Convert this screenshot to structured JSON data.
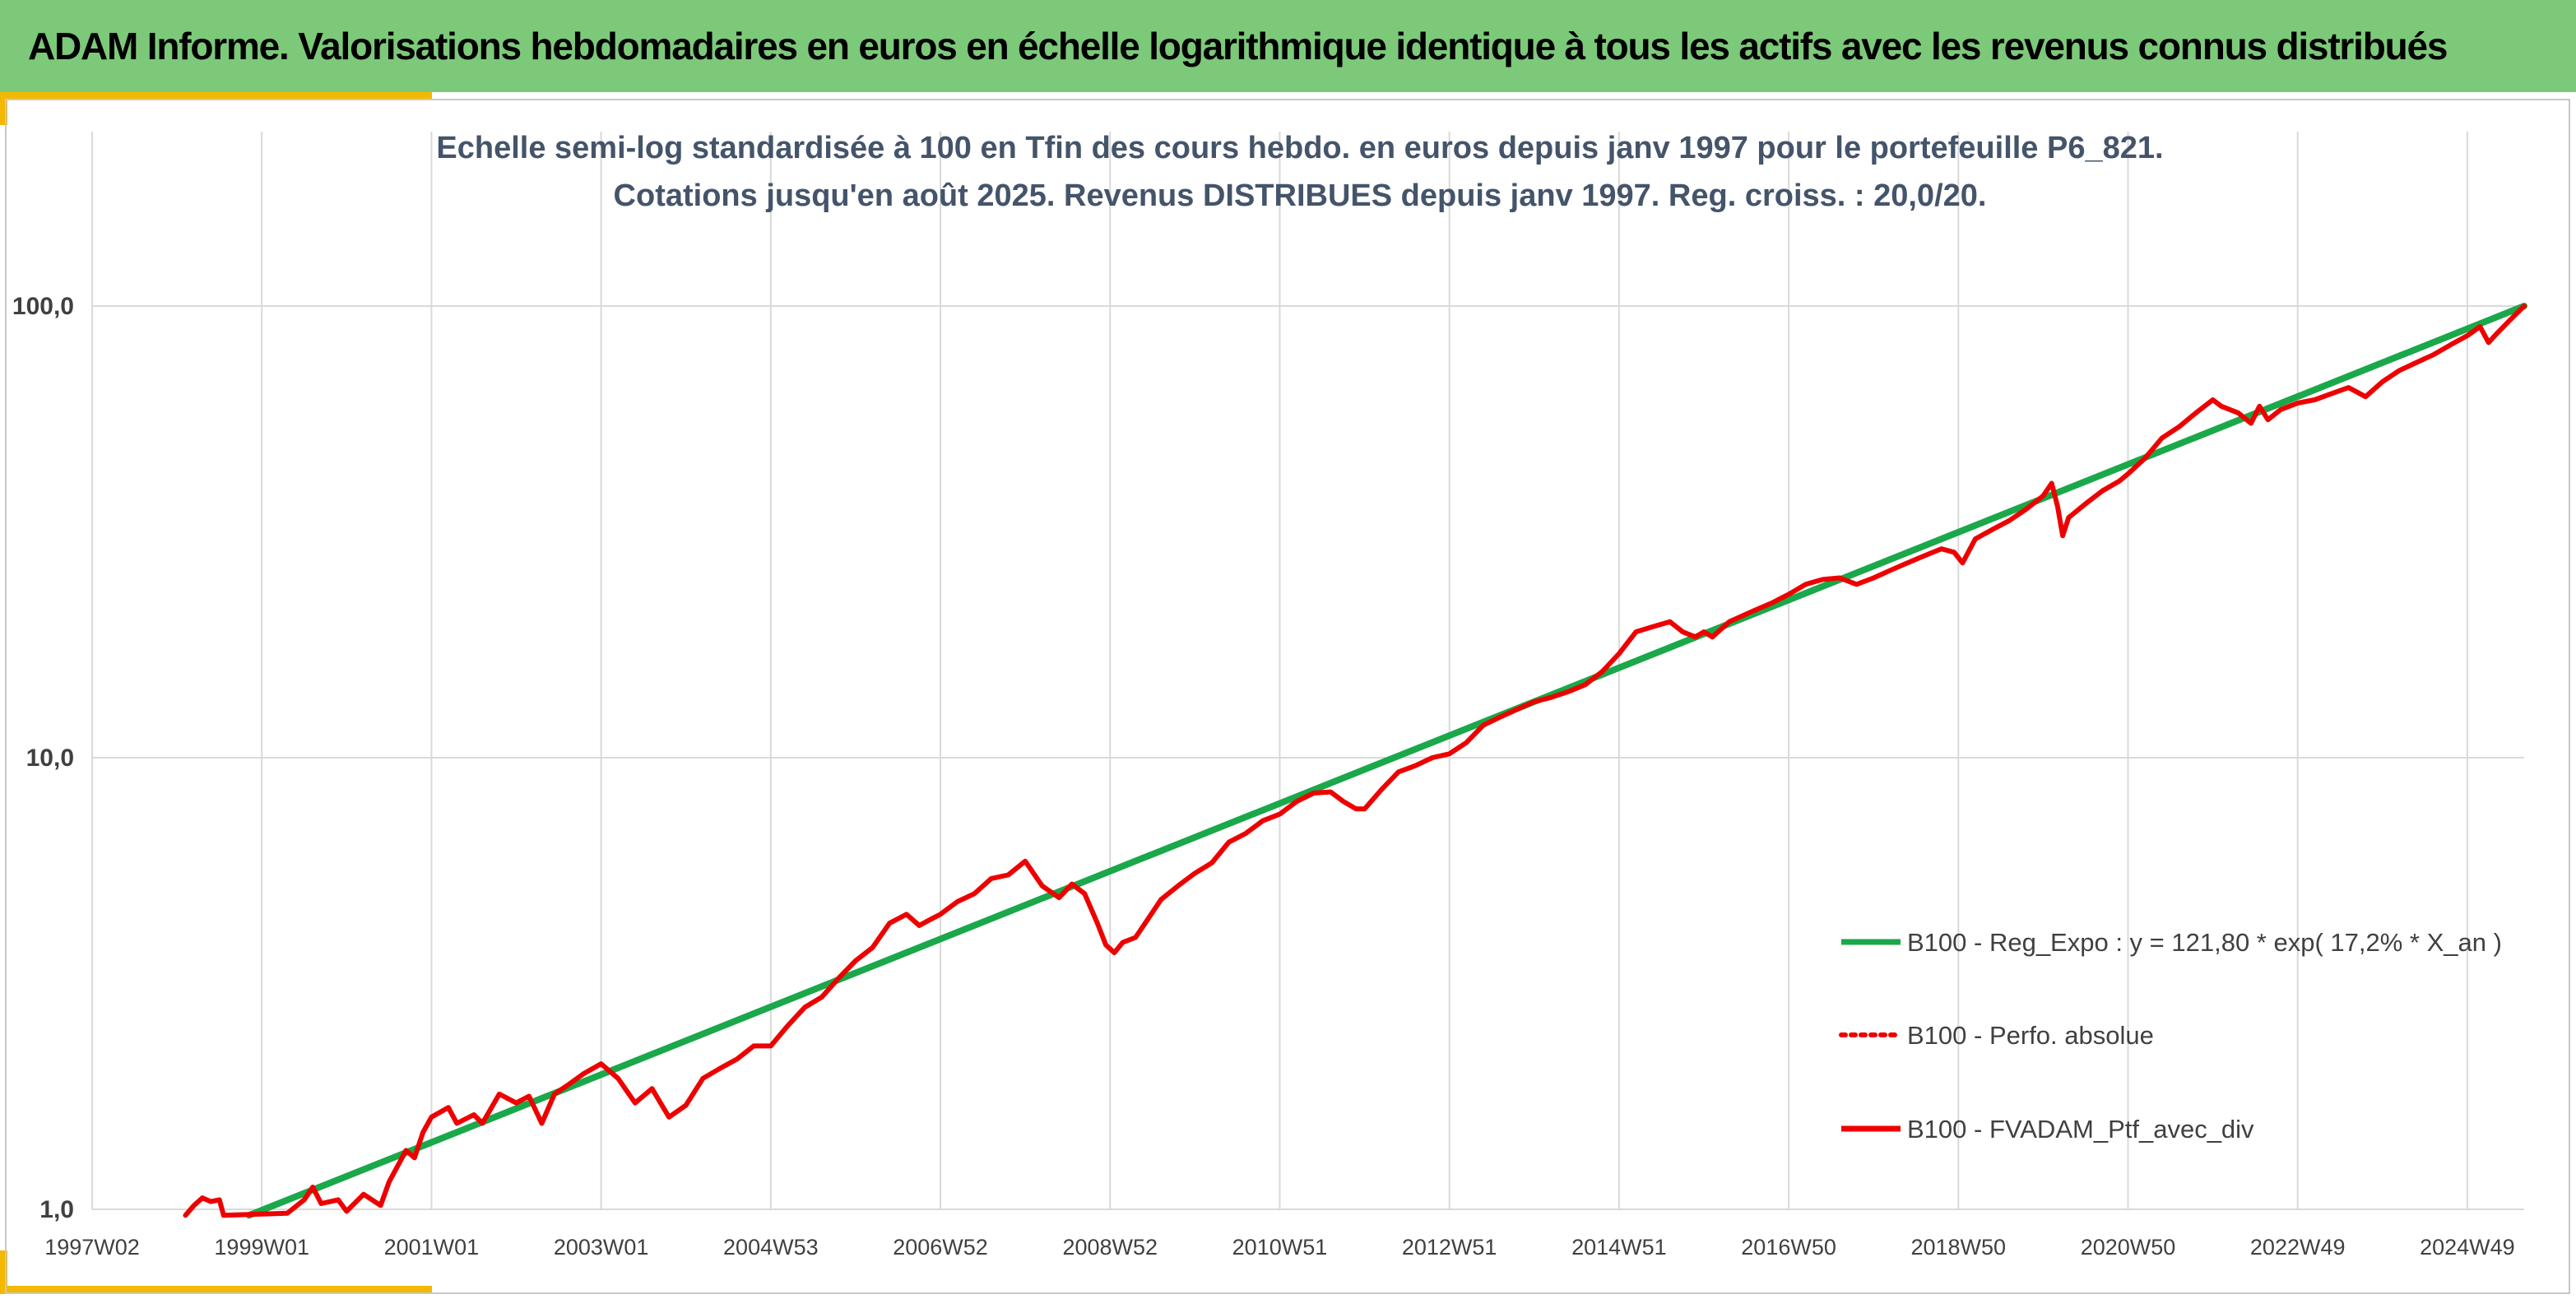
{
  "header": {
    "title": "ADAM Informe. Valorisations hebdomadaires en euros en échelle logarithmique identique à tous les actifs avec les revenus connus distribués"
  },
  "colors": {
    "header_bg": "#7dc97a",
    "accent": "#f4b800",
    "regression_line": "#1aa84a",
    "portfolio_line": "#ee0000",
    "subtitle_text": "#44546a",
    "grid": "#d9d9d9"
  },
  "chart_data": {
    "type": "line",
    "title_lines": [
      "Echelle semi-log standardisée à 100 en Tfin des cours hebdo. en euros depuis janv 1997 pour le portefeuille P6_821.",
      "Cotations jusqu'en août 2025. Revenus DISTRIBUES depuis janv 1997. Reg. croiss. : 20,0/20."
    ],
    "y_scale": "log",
    "ylim": [
      1,
      100
    ],
    "y_ticks": [
      {
        "value": 1,
        "label": "1,0"
      },
      {
        "value": 10,
        "label": "10,0"
      },
      {
        "value": 100,
        "label": "100,0"
      }
    ],
    "xlim": [
      1997.0,
      2025.67
    ],
    "x_ticks": [
      {
        "value": 1997.0,
        "label": "1997W02"
      },
      {
        "value": 1999.0,
        "label": "1999W01"
      },
      {
        "value": 2001.0,
        "label": "2001W01"
      },
      {
        "value": 2003.0,
        "label": "2003W01"
      },
      {
        "value": 2005.0,
        "label": "2004W53"
      },
      {
        "value": 2007.0,
        "label": "2006W52"
      },
      {
        "value": 2009.0,
        "label": "2008W52"
      },
      {
        "value": 2011.0,
        "label": "2010W51"
      },
      {
        "value": 2013.0,
        "label": "2012W51"
      },
      {
        "value": 2015.0,
        "label": "2014W51"
      },
      {
        "value": 2017.0,
        "label": "2016W50"
      },
      {
        "value": 2019.0,
        "label": "2018W50"
      },
      {
        "value": 2021.0,
        "label": "2020W50"
      },
      {
        "value": 2023.0,
        "label": "2022W49"
      },
      {
        "value": 2025.0,
        "label": "2024W49"
      }
    ],
    "grid": true,
    "legend_position": "right",
    "series": [
      {
        "name": "B100 - Reg_Expo : y = 121,80 * exp( 17,2% *  X_an )",
        "style": "solid-green",
        "points": [
          [
            1998.85,
            0.97
          ],
          [
            2025.67,
            100.0
          ]
        ]
      },
      {
        "name": "B100 - Perfo. absolue",
        "style": "dotted-red",
        "points": []
      },
      {
        "name": "B100 - FVADAM_Ptf_avec_div",
        "style": "solid-red",
        "points": [
          [
            1998.1,
            0.97
          ],
          [
            1998.2,
            1.02
          ],
          [
            1998.3,
            1.06
          ],
          [
            1998.4,
            1.04
          ],
          [
            1998.5,
            1.05
          ],
          [
            1998.55,
            0.97
          ],
          [
            1999.3,
            0.98
          ],
          [
            1999.5,
            1.05
          ],
          [
            1999.6,
            1.12
          ],
          [
            1999.7,
            1.03
          ],
          [
            1999.9,
            1.05
          ],
          [
            2000.0,
            0.99
          ],
          [
            2000.2,
            1.08
          ],
          [
            2000.4,
            1.02
          ],
          [
            2000.5,
            1.15
          ],
          [
            2000.7,
            1.35
          ],
          [
            2000.8,
            1.3
          ],
          [
            2000.9,
            1.48
          ],
          [
            2001.0,
            1.6
          ],
          [
            2001.2,
            1.68
          ],
          [
            2001.3,
            1.55
          ],
          [
            2001.5,
            1.62
          ],
          [
            2001.6,
            1.55
          ],
          [
            2001.8,
            1.8
          ],
          [
            2002.0,
            1.72
          ],
          [
            2002.15,
            1.78
          ],
          [
            2002.3,
            1.55
          ],
          [
            2002.45,
            1.8
          ],
          [
            2002.6,
            1.88
          ],
          [
            2002.8,
            2.0
          ],
          [
            2003.0,
            2.1
          ],
          [
            2003.2,
            1.95
          ],
          [
            2003.4,
            1.72
          ],
          [
            2003.6,
            1.85
          ],
          [
            2003.8,
            1.6
          ],
          [
            2004.0,
            1.7
          ],
          [
            2004.2,
            1.95
          ],
          [
            2004.4,
            2.05
          ],
          [
            2004.6,
            2.15
          ],
          [
            2004.8,
            2.3
          ],
          [
            2005.0,
            2.3
          ],
          [
            2005.2,
            2.55
          ],
          [
            2005.4,
            2.8
          ],
          [
            2005.6,
            2.95
          ],
          [
            2005.8,
            3.25
          ],
          [
            2006.0,
            3.55
          ],
          [
            2006.2,
            3.8
          ],
          [
            2006.4,
            4.3
          ],
          [
            2006.6,
            4.5
          ],
          [
            2006.75,
            4.25
          ],
          [
            2006.9,
            4.4
          ],
          [
            2007.0,
            4.5
          ],
          [
            2007.2,
            4.8
          ],
          [
            2007.4,
            5.0
          ],
          [
            2007.6,
            5.4
          ],
          [
            2007.8,
            5.5
          ],
          [
            2008.0,
            5.9
          ],
          [
            2008.2,
            5.2
          ],
          [
            2008.4,
            4.9
          ],
          [
            2008.55,
            5.25
          ],
          [
            2008.7,
            5.0
          ],
          [
            2008.85,
            4.3
          ],
          [
            2008.95,
            3.85
          ],
          [
            2009.05,
            3.7
          ],
          [
            2009.15,
            3.9
          ],
          [
            2009.3,
            4.0
          ],
          [
            2009.45,
            4.4
          ],
          [
            2009.6,
            4.85
          ],
          [
            2009.8,
            5.2
          ],
          [
            2010.0,
            5.55
          ],
          [
            2010.2,
            5.85
          ],
          [
            2010.4,
            6.5
          ],
          [
            2010.6,
            6.8
          ],
          [
            2010.8,
            7.25
          ],
          [
            2011.0,
            7.5
          ],
          [
            2011.2,
            8.0
          ],
          [
            2011.4,
            8.35
          ],
          [
            2011.6,
            8.4
          ],
          [
            2011.75,
            8.0
          ],
          [
            2011.9,
            7.7
          ],
          [
            2012.0,
            7.7
          ],
          [
            2012.2,
            8.5
          ],
          [
            2012.4,
            9.3
          ],
          [
            2012.6,
            9.6
          ],
          [
            2012.8,
            10.0
          ],
          [
            2013.0,
            10.2
          ],
          [
            2013.2,
            10.8
          ],
          [
            2013.4,
            11.8
          ],
          [
            2013.6,
            12.3
          ],
          [
            2013.8,
            12.8
          ],
          [
            2014.0,
            13.3
          ],
          [
            2014.2,
            13.6
          ],
          [
            2014.4,
            14.0
          ],
          [
            2014.6,
            14.5
          ],
          [
            2014.8,
            15.5
          ],
          [
            2015.0,
            17.0
          ],
          [
            2015.2,
            19.0
          ],
          [
            2015.4,
            19.5
          ],
          [
            2015.6,
            20.0
          ],
          [
            2015.75,
            19.0
          ],
          [
            2015.9,
            18.5
          ],
          [
            2016.0,
            19.0
          ],
          [
            2016.1,
            18.5
          ],
          [
            2016.3,
            20.0
          ],
          [
            2016.6,
            21.2
          ],
          [
            2016.8,
            22.0
          ],
          [
            2017.0,
            23.0
          ],
          [
            2017.2,
            24.2
          ],
          [
            2017.4,
            24.8
          ],
          [
            2017.6,
            25.0
          ],
          [
            2017.8,
            24.2
          ],
          [
            2018.0,
            25.0
          ],
          [
            2018.2,
            26.0
          ],
          [
            2018.4,
            27.0
          ],
          [
            2018.6,
            28.0
          ],
          [
            2018.8,
            29.0
          ],
          [
            2018.95,
            28.5
          ],
          [
            2019.05,
            27.0
          ],
          [
            2019.2,
            30.5
          ],
          [
            2019.4,
            32.0
          ],
          [
            2019.6,
            33.5
          ],
          [
            2019.8,
            35.5
          ],
          [
            2020.0,
            38.0
          ],
          [
            2020.1,
            40.5
          ],
          [
            2020.17,
            36.0
          ],
          [
            2020.23,
            31.0
          ],
          [
            2020.3,
            34.0
          ],
          [
            2020.5,
            36.5
          ],
          [
            2020.7,
            39.0
          ],
          [
            2020.9,
            41.0
          ],
          [
            2021.0,
            42.5
          ],
          [
            2021.2,
            46.0
          ],
          [
            2021.4,
            51.0
          ],
          [
            2021.6,
            54.0
          ],
          [
            2021.8,
            58.0
          ],
          [
            2022.0,
            62.0
          ],
          [
            2022.1,
            60.0
          ],
          [
            2022.3,
            58.0
          ],
          [
            2022.45,
            55.0
          ],
          [
            2022.55,
            60.0
          ],
          [
            2022.65,
            56.0
          ],
          [
            2022.8,
            59.0
          ],
          [
            2023.0,
            61.0
          ],
          [
            2023.2,
            62.0
          ],
          [
            2023.4,
            64.0
          ],
          [
            2023.6,
            66.0
          ],
          [
            2023.8,
            63.0
          ],
          [
            2024.0,
            68.0
          ],
          [
            2024.2,
            72.0
          ],
          [
            2024.4,
            75.0
          ],
          [
            2024.6,
            78.0
          ],
          [
            2024.8,
            82.0
          ],
          [
            2025.0,
            86.0
          ],
          [
            2025.15,
            90.0
          ],
          [
            2025.25,
            83.0
          ],
          [
            2025.35,
            87.0
          ],
          [
            2025.5,
            93.0
          ],
          [
            2025.67,
            100.0
          ]
        ]
      }
    ]
  }
}
